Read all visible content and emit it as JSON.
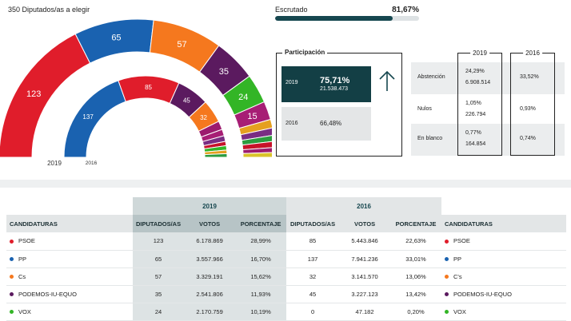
{
  "header": {
    "total_label": "350 Diputados/as a elegir",
    "escrutado_label": "Escrutado",
    "escrutado_value": "81,67%",
    "escrutado_fraction": 0.8167
  },
  "hemicycle": {
    "label_2019": "2019",
    "label_2016": "2016",
    "outer": [
      {
        "party": "PSOE",
        "seats": 123,
        "color": "#e01d2b",
        "label": "123"
      },
      {
        "party": "PP",
        "seats": 65,
        "color": "#1a62b0",
        "label": "65"
      },
      {
        "party": "Cs",
        "seats": 57,
        "color": "#f5781e",
        "label": "57"
      },
      {
        "party": "PODEMOS",
        "seats": 35,
        "color": "#5b1a5f",
        "label": "35"
      },
      {
        "party": "VOX",
        "seats": 24,
        "color": "#33b526",
        "label": "24"
      },
      {
        "party": "ERC",
        "seats": 15,
        "color": "#a71e75",
        "label": "15"
      },
      {
        "party": "O1",
        "seats": 7,
        "color": "#e5a020",
        "label": ""
      },
      {
        "party": "O2",
        "seats": 6,
        "color": "#7a2d83",
        "label": ""
      },
      {
        "party": "O3",
        "seats": 5,
        "color": "#2c9c3f",
        "label": ""
      },
      {
        "party": "O4",
        "seats": 5,
        "color": "#c7122a",
        "label": ""
      },
      {
        "party": "O5",
        "seats": 4,
        "color": "#9c1b6e",
        "label": ""
      },
      {
        "party": "O6",
        "seats": 4,
        "color": "#d9c32b",
        "label": ""
      }
    ],
    "inner": [
      {
        "party": "PP",
        "seats": 137,
        "color": "#1a62b0",
        "label": "137"
      },
      {
        "party": "PSOE",
        "seats": 85,
        "color": "#e01d2b",
        "label": "85"
      },
      {
        "party": "PODEMOS",
        "seats": 45,
        "color": "#5b1a5f",
        "label": "45"
      },
      {
        "party": "Cs",
        "seats": 32,
        "color": "#f5781e",
        "label": "32"
      },
      {
        "party": "I1",
        "seats": 12,
        "color": "#9c1b6e",
        "label": ""
      },
      {
        "party": "I2",
        "seats": 9,
        "color": "#a71e75",
        "label": ""
      },
      {
        "party": "I3",
        "seats": 8,
        "color": "#7a2d83",
        "label": ""
      },
      {
        "party": "I4",
        "seats": 6,
        "color": "#c7122a",
        "label": ""
      },
      {
        "party": "I5",
        "seats": 6,
        "color": "#33b526",
        "label": ""
      },
      {
        "party": "I6",
        "seats": 5,
        "color": "#e5a020",
        "label": ""
      },
      {
        "party": "I7",
        "seats": 5,
        "color": "#2c9c3f",
        "label": ""
      }
    ]
  },
  "participacion": {
    "title": "Participación",
    "y2019": "2019",
    "pct2019": "75,71%",
    "votes2019": "21.538.473",
    "y2016": "2016",
    "pct2016": "66,48%",
    "arrow_icon": "arrow-up-icon"
  },
  "abstencion": {
    "col_2019": "2019",
    "col_2016": "2016",
    "rows": [
      {
        "label": "Abstención",
        "pct2019": "24,29%",
        "num2019": "6.908.514",
        "pct2016": "33,52%"
      },
      {
        "label": "Nulos",
        "pct2019": "1,05%",
        "num2019": "226.794",
        "pct2016": "0,93%"
      },
      {
        "label": "En blanco",
        "pct2019": "0,77%",
        "num2019": "164.854",
        "pct2016": "0,74%"
      }
    ]
  },
  "table": {
    "year_2019": "2019",
    "year_2016": "2016",
    "headers": {
      "cand": "CANDIDATURAS",
      "dip": "DIPUTADOS/AS",
      "votos": "VOTOS",
      "pct": "PORCENTAJE"
    },
    "rows": [
      {
        "name": "PSOE",
        "color": "#e01d2b",
        "d19": "123",
        "v19": "6.178.869",
        "p19": "28,99%",
        "d16": "85",
        "v16": "5.443.846",
        "p16": "22,63%",
        "name16": "PSOE"
      },
      {
        "name": "PP",
        "color": "#1a62b0",
        "d19": "65",
        "v19": "3.557.966",
        "p19": "16,70%",
        "d16": "137",
        "v16": "7.941.236",
        "p16": "33,01%",
        "name16": "PP"
      },
      {
        "name": "Cs",
        "color": "#f5781e",
        "d19": "57",
        "v19": "3.329.191",
        "p19": "15,62%",
        "d16": "32",
        "v16": "3.141.570",
        "p16": "13,06%",
        "name16": "C's"
      },
      {
        "name": "PODEMOS-IU-EQUO",
        "color": "#5b1a5f",
        "d19": "35",
        "v19": "2.541.806",
        "p19": "11,93%",
        "d16": "45",
        "v16": "3.227.123",
        "p16": "13,42%",
        "name16": "PODEMOS-IU-EQUO"
      },
      {
        "name": "VOX",
        "color": "#33b526",
        "d19": "24",
        "v19": "2.170.759",
        "p19": "10,19%",
        "d16": "0",
        "v16": "47.182",
        "p16": "0,20%",
        "name16": "VOX"
      }
    ]
  }
}
